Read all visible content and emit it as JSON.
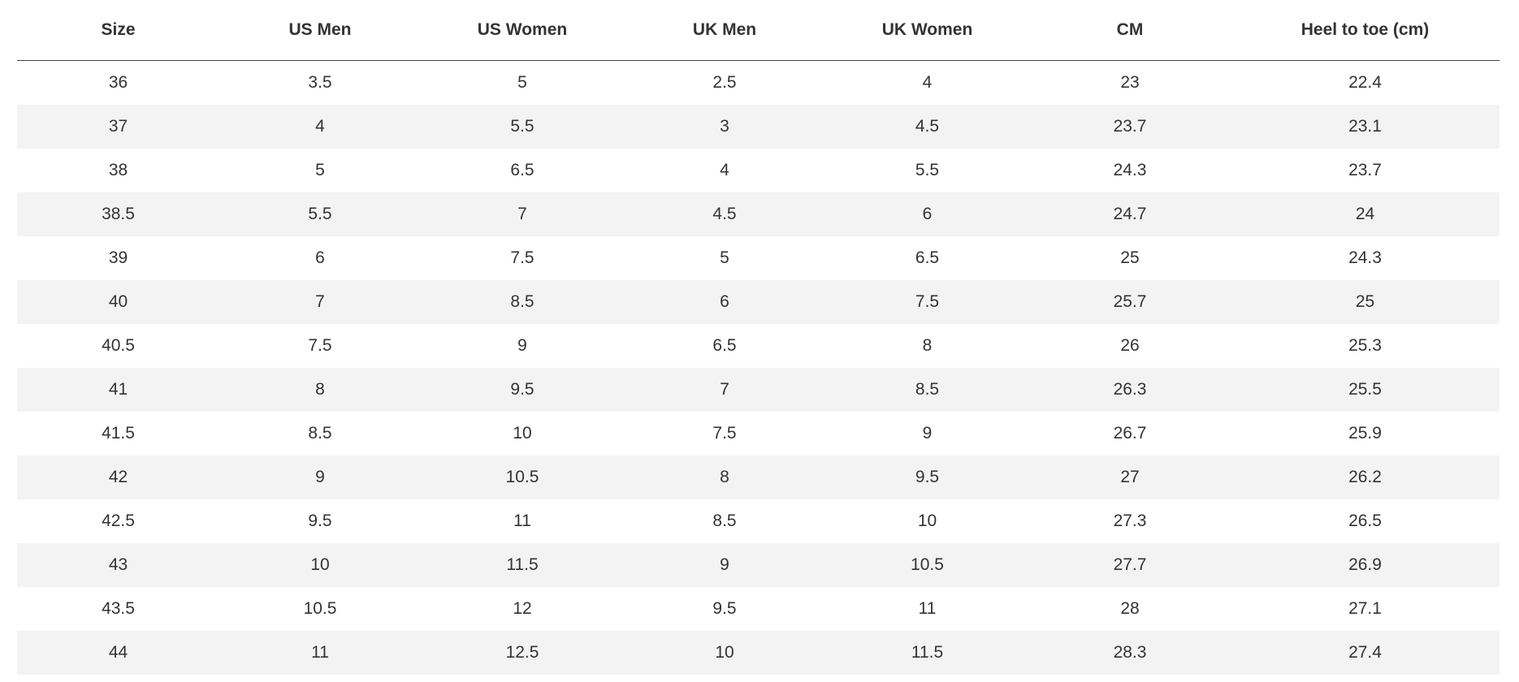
{
  "table": {
    "header": [
      "Size",
      "US Men",
      "US Women",
      "UK Men",
      "UK Women",
      "CM",
      "Heel to toe (cm)"
    ],
    "rows": [
      [
        "36",
        "3.5",
        "5",
        "2.5",
        "4",
        "23",
        "22.4"
      ],
      [
        "37",
        "4",
        "5.5",
        "3",
        "4.5",
        "23.7",
        "23.1"
      ],
      [
        "38",
        "5",
        "6.5",
        "4",
        "5.5",
        "24.3",
        "23.7"
      ],
      [
        "38.5",
        "5.5",
        "7",
        "4.5",
        "6",
        "24.7",
        "24"
      ],
      [
        "39",
        "6",
        "7.5",
        "5",
        "6.5",
        "25",
        "24.3"
      ],
      [
        "40",
        "7",
        "8.5",
        "6",
        "7.5",
        "25.7",
        "25"
      ],
      [
        "40.5",
        "7.5",
        "9",
        "6.5",
        "8",
        "26",
        "25.3"
      ],
      [
        "41",
        "8",
        "9.5",
        "7",
        "8.5",
        "26.3",
        "25.5"
      ],
      [
        "41.5",
        "8.5",
        "10",
        "7.5",
        "9",
        "26.7",
        "25.9"
      ],
      [
        "42",
        "9",
        "10.5",
        "8",
        "9.5",
        "27",
        "26.2"
      ],
      [
        "42.5",
        "9.5",
        "11",
        "8.5",
        "10",
        "27.3",
        "26.5"
      ],
      [
        "43",
        "10",
        "11.5",
        "9",
        "10.5",
        "27.7",
        "26.9"
      ],
      [
        "43.5",
        "10.5",
        "12",
        "9.5",
        "11",
        "28",
        "27.1"
      ],
      [
        "44",
        "11",
        "12.5",
        "10",
        "11.5",
        "28.3",
        "27.4"
      ]
    ]
  }
}
